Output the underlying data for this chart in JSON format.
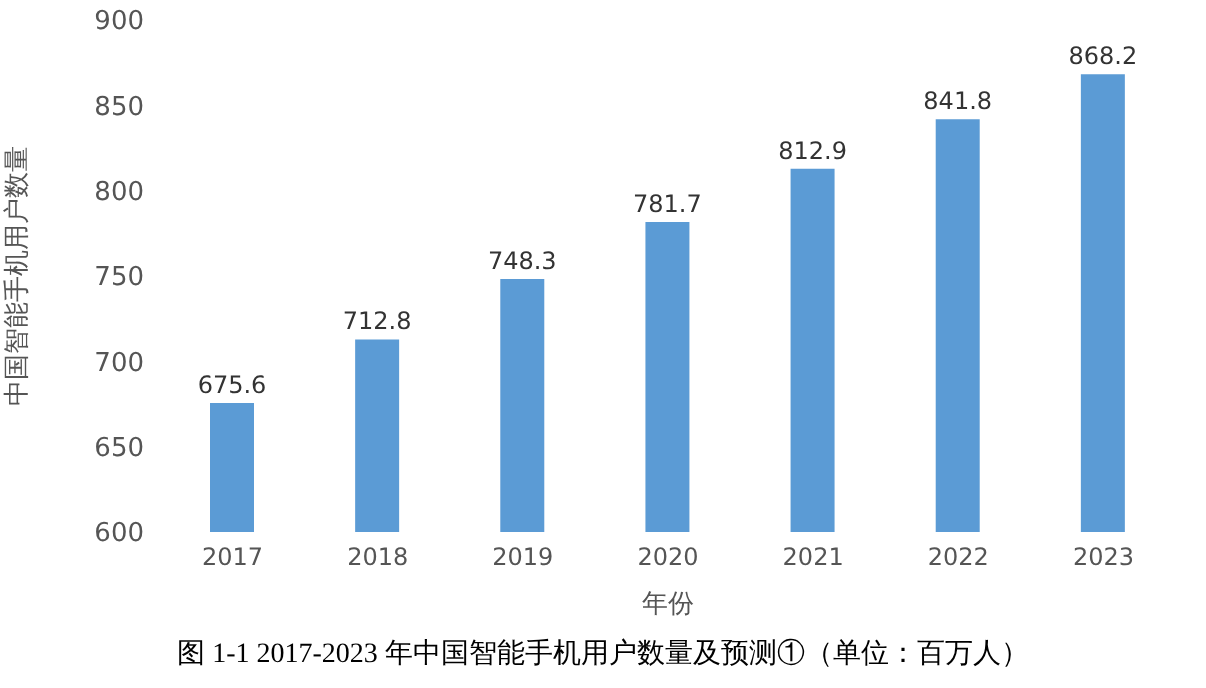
{
  "chart_data": {
    "type": "bar",
    "title": "图 1-1 2017-2023 年中国智能手机用户数量及预测①（单位：百万人）",
    "xlabel": "年份",
    "ylabel": "中国智能手机用户数量",
    "categories": [
      "2017",
      "2018",
      "2019",
      "2020",
      "2021",
      "2022",
      "2023"
    ],
    "values": [
      675.6,
      712.8,
      748.3,
      781.7,
      812.9,
      841.8,
      868.2
    ],
    "color": "#5b9bd5",
    "ylim": [
      600,
      900
    ],
    "yticks": [
      600,
      650,
      700,
      750,
      800,
      850,
      900
    ],
    "data_labels": true,
    "grid": false
  }
}
